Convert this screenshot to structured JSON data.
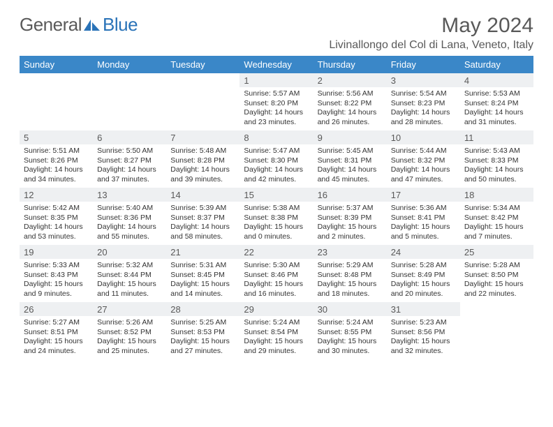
{
  "logo": {
    "text1": "General",
    "text2": "Blue"
  },
  "title": "May 2024",
  "location": "Livinallongo del Col di Lana, Veneto, Italy",
  "colors": {
    "header_bg": "#3a87c8",
    "header_text": "#ffffff",
    "daynum_bg": "#eef0f2",
    "text": "#595959",
    "logo_gray": "#5a5a5a",
    "logo_blue": "#2a73b8"
  },
  "daysOfWeek": [
    "Sunday",
    "Monday",
    "Tuesday",
    "Wednesday",
    "Thursday",
    "Friday",
    "Saturday"
  ],
  "weeks": [
    [
      {
        "n": "",
        "sr": "",
        "ss": "",
        "dl": ""
      },
      {
        "n": "",
        "sr": "",
        "ss": "",
        "dl": ""
      },
      {
        "n": "",
        "sr": "",
        "ss": "",
        "dl": ""
      },
      {
        "n": "1",
        "sr": "5:57 AM",
        "ss": "8:20 PM",
        "dl": "14 hours and 23 minutes."
      },
      {
        "n": "2",
        "sr": "5:56 AM",
        "ss": "8:22 PM",
        "dl": "14 hours and 26 minutes."
      },
      {
        "n": "3",
        "sr": "5:54 AM",
        "ss": "8:23 PM",
        "dl": "14 hours and 28 minutes."
      },
      {
        "n": "4",
        "sr": "5:53 AM",
        "ss": "8:24 PM",
        "dl": "14 hours and 31 minutes."
      }
    ],
    [
      {
        "n": "5",
        "sr": "5:51 AM",
        "ss": "8:26 PM",
        "dl": "14 hours and 34 minutes."
      },
      {
        "n": "6",
        "sr": "5:50 AM",
        "ss": "8:27 PM",
        "dl": "14 hours and 37 minutes."
      },
      {
        "n": "7",
        "sr": "5:48 AM",
        "ss": "8:28 PM",
        "dl": "14 hours and 39 minutes."
      },
      {
        "n": "8",
        "sr": "5:47 AM",
        "ss": "8:30 PM",
        "dl": "14 hours and 42 minutes."
      },
      {
        "n": "9",
        "sr": "5:45 AM",
        "ss": "8:31 PM",
        "dl": "14 hours and 45 minutes."
      },
      {
        "n": "10",
        "sr": "5:44 AM",
        "ss": "8:32 PM",
        "dl": "14 hours and 47 minutes."
      },
      {
        "n": "11",
        "sr": "5:43 AM",
        "ss": "8:33 PM",
        "dl": "14 hours and 50 minutes."
      }
    ],
    [
      {
        "n": "12",
        "sr": "5:42 AM",
        "ss": "8:35 PM",
        "dl": "14 hours and 53 minutes."
      },
      {
        "n": "13",
        "sr": "5:40 AM",
        "ss": "8:36 PM",
        "dl": "14 hours and 55 minutes."
      },
      {
        "n": "14",
        "sr": "5:39 AM",
        "ss": "8:37 PM",
        "dl": "14 hours and 58 minutes."
      },
      {
        "n": "15",
        "sr": "5:38 AM",
        "ss": "8:38 PM",
        "dl": "15 hours and 0 minutes."
      },
      {
        "n": "16",
        "sr": "5:37 AM",
        "ss": "8:39 PM",
        "dl": "15 hours and 2 minutes."
      },
      {
        "n": "17",
        "sr": "5:36 AM",
        "ss": "8:41 PM",
        "dl": "15 hours and 5 minutes."
      },
      {
        "n": "18",
        "sr": "5:34 AM",
        "ss": "8:42 PM",
        "dl": "15 hours and 7 minutes."
      }
    ],
    [
      {
        "n": "19",
        "sr": "5:33 AM",
        "ss": "8:43 PM",
        "dl": "15 hours and 9 minutes."
      },
      {
        "n": "20",
        "sr": "5:32 AM",
        "ss": "8:44 PM",
        "dl": "15 hours and 11 minutes."
      },
      {
        "n": "21",
        "sr": "5:31 AM",
        "ss": "8:45 PM",
        "dl": "15 hours and 14 minutes."
      },
      {
        "n": "22",
        "sr": "5:30 AM",
        "ss": "8:46 PM",
        "dl": "15 hours and 16 minutes."
      },
      {
        "n": "23",
        "sr": "5:29 AM",
        "ss": "8:48 PM",
        "dl": "15 hours and 18 minutes."
      },
      {
        "n": "24",
        "sr": "5:28 AM",
        "ss": "8:49 PM",
        "dl": "15 hours and 20 minutes."
      },
      {
        "n": "25",
        "sr": "5:28 AM",
        "ss": "8:50 PM",
        "dl": "15 hours and 22 minutes."
      }
    ],
    [
      {
        "n": "26",
        "sr": "5:27 AM",
        "ss": "8:51 PM",
        "dl": "15 hours and 24 minutes."
      },
      {
        "n": "27",
        "sr": "5:26 AM",
        "ss": "8:52 PM",
        "dl": "15 hours and 25 minutes."
      },
      {
        "n": "28",
        "sr": "5:25 AM",
        "ss": "8:53 PM",
        "dl": "15 hours and 27 minutes."
      },
      {
        "n": "29",
        "sr": "5:24 AM",
        "ss": "8:54 PM",
        "dl": "15 hours and 29 minutes."
      },
      {
        "n": "30",
        "sr": "5:24 AM",
        "ss": "8:55 PM",
        "dl": "15 hours and 30 minutes."
      },
      {
        "n": "31",
        "sr": "5:23 AM",
        "ss": "8:56 PM",
        "dl": "15 hours and 32 minutes."
      },
      {
        "n": "",
        "sr": "",
        "ss": "",
        "dl": ""
      }
    ]
  ],
  "labels": {
    "sunrise": "Sunrise:",
    "sunset": "Sunset:",
    "daylight": "Daylight:"
  }
}
